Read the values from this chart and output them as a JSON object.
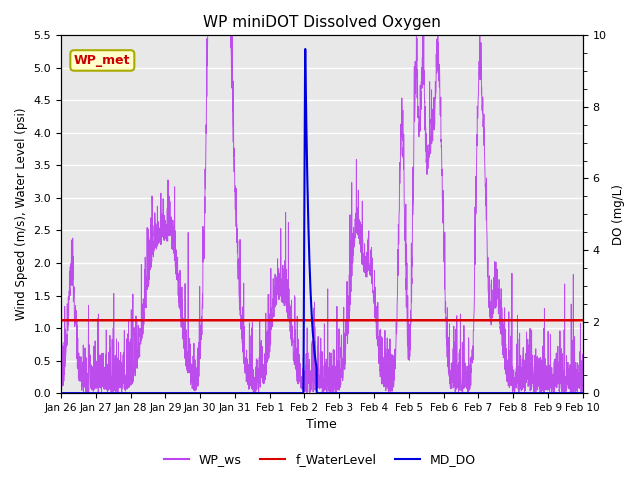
{
  "title": "WP miniDOT Dissolved Oxygen",
  "ylabel_left": "Wind Speed (m/s), Water Level (psi)",
  "ylabel_right": "DO (mg/L)",
  "xlabel": "Time",
  "ylim_left": [
    0.0,
    5.5
  ],
  "ylim_right": [
    0.0,
    10.0
  ],
  "annotation_text": "WP_met",
  "annotation_facecolor": "#ffffcc",
  "annotation_edgecolor": "#aaaa00",
  "annotation_textcolor": "#cc0000",
  "background_color": "#e8e8e8",
  "wp_ws_color": "#bb44ee",
  "f_water_level_color": "#dd0000",
  "md_do_color": "#0000dd",
  "f_water_level_value": 1.12,
  "legend_labels": [
    "WP_ws",
    "f_WaterLevel",
    "MD_DO"
  ],
  "x_tick_labels": [
    "Jan 26",
    "Jan 27",
    "Jan 28",
    "Jan 29",
    "Jan 30",
    "Jan 31",
    "Feb 1",
    "Feb 2",
    "Feb 3",
    "Feb 4",
    "Feb 5",
    "Feb 6",
    "Feb 7",
    "Feb 8",
    "Feb 9",
    "Feb 10"
  ],
  "num_points": 3000,
  "random_seed": 7
}
